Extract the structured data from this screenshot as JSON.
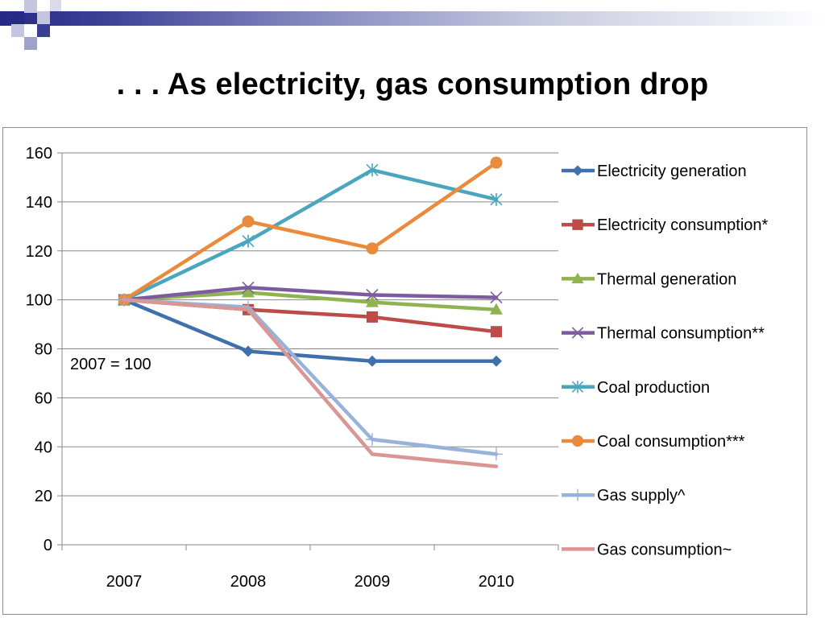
{
  "slide": {
    "title": ". . . As electricity, gas consumption drop",
    "note": "2007 = 100"
  },
  "theme": {
    "accent_dark": "#252a86",
    "accent_light": "#9ea2cc"
  },
  "chart_data": {
    "type": "line",
    "x": [
      "2007",
      "2008",
      "2009",
      "2010"
    ],
    "ylim": [
      0,
      160
    ],
    "yticks": [
      0,
      20,
      40,
      60,
      80,
      100,
      120,
      140,
      160
    ],
    "xlabel": "",
    "ylabel": "",
    "grid": true,
    "legend": "right",
    "series": [
      {
        "name": "Electricity generation",
        "values": [
          100,
          79,
          75,
          75
        ],
        "color": "#4070ac",
        "marker": "diamond"
      },
      {
        "name": "Electricity consumption*",
        "values": [
          100,
          96,
          93,
          87
        ],
        "color": "#bd4b48",
        "marker": "square"
      },
      {
        "name": "Thermal  generation",
        "values": [
          100,
          103,
          99,
          96
        ],
        "color": "#8eb350",
        "marker": "triangle"
      },
      {
        "name": "Thermal consumption**",
        "values": [
          100,
          105,
          102,
          101
        ],
        "color": "#7c5c9f",
        "marker": "x"
      },
      {
        "name": "Coal production",
        "values": [
          100,
          124,
          153,
          141
        ],
        "color": "#4aa6bf",
        "marker": "star"
      },
      {
        "name": "Coal consumption***",
        "values": [
          100,
          132,
          121,
          156
        ],
        "color": "#ea8a3c",
        "marker": "circle"
      },
      {
        "name": "Gas supply^",
        "values": [
          100,
          97,
          43,
          37
        ],
        "color": "#98b2d9",
        "marker": "plus"
      },
      {
        "name": "Gas consumption~",
        "values": [
          100,
          96,
          37,
          32
        ],
        "color": "#d99694",
        "marker": "none"
      }
    ]
  }
}
